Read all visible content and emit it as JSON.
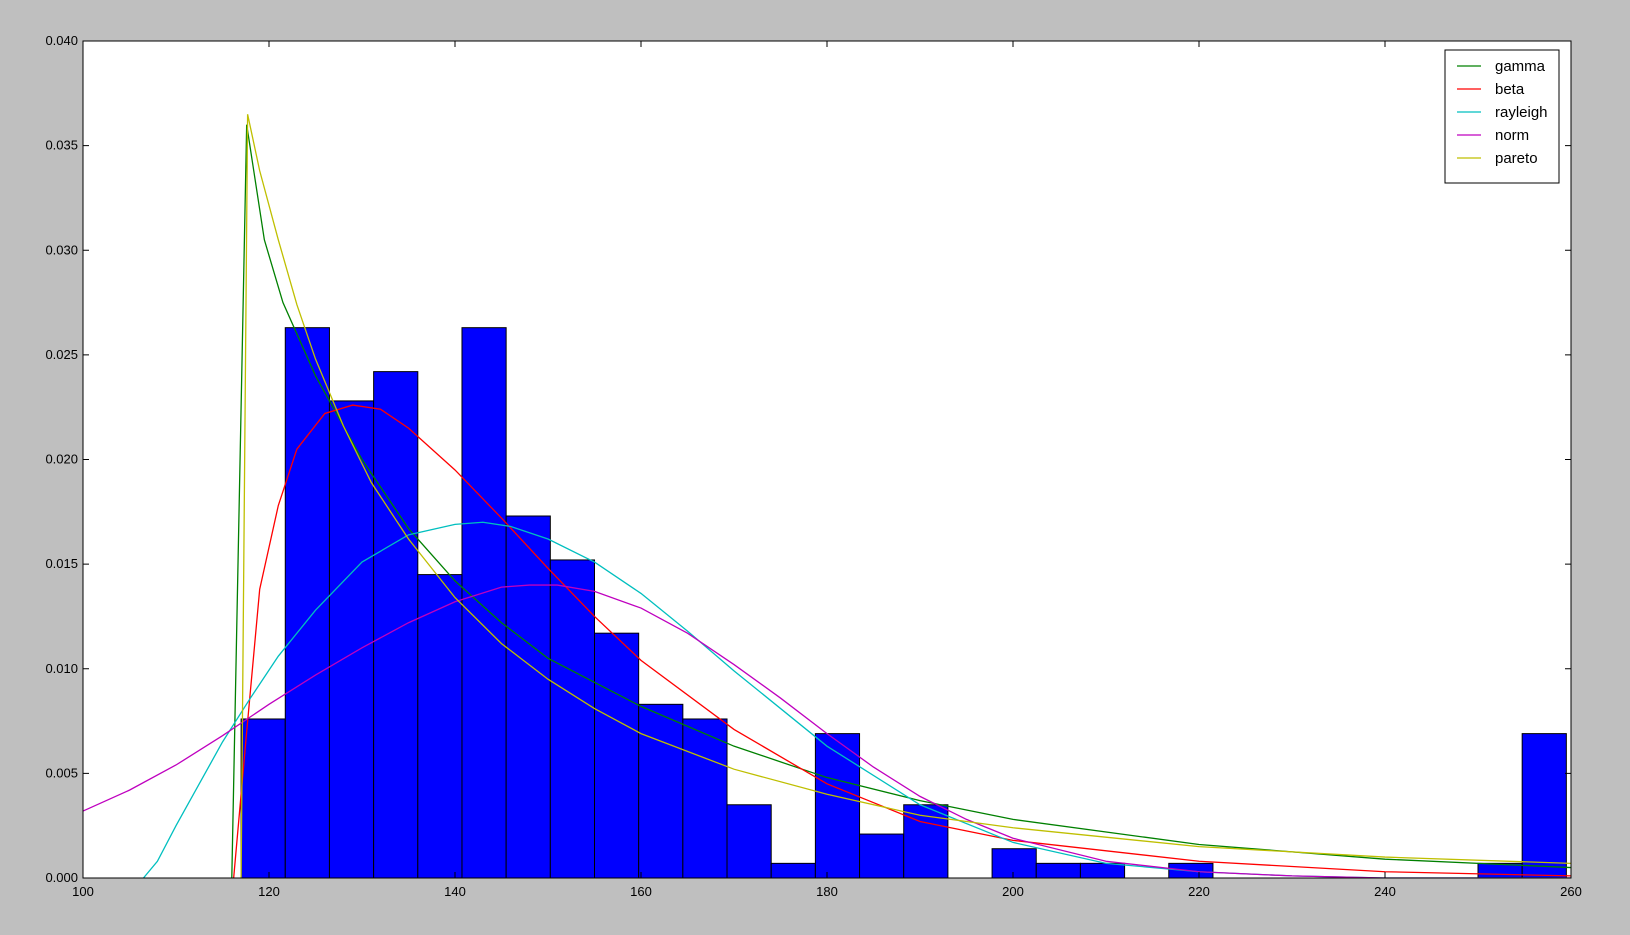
{
  "chart_data": {
    "type": "bar",
    "title": "",
    "xlabel": "",
    "ylabel": "",
    "xlim": [
      100,
      260
    ],
    "ylim": [
      0,
      0.04
    ],
    "x_ticks": [
      100,
      120,
      140,
      160,
      180,
      200,
      220,
      240,
      260
    ],
    "y_ticks": [
      0.0,
      0.005,
      0.01,
      0.015,
      0.02,
      0.025,
      0.03,
      0.035,
      0.04
    ],
    "x_tick_labels": [
      "100",
      "120",
      "140",
      "160",
      "180",
      "200",
      "220",
      "240",
      "260"
    ],
    "y_tick_labels": [
      "0.000",
      "0.005",
      "0.010",
      "0.015",
      "0.020",
      "0.025",
      "0.030",
      "0.035",
      "0.040"
    ],
    "grid": false,
    "legend_position": "top-right",
    "histogram": {
      "color": "#0000ff",
      "bin_edges": [
        117.0,
        121.75,
        126.5,
        131.25,
        136.0,
        140.75,
        145.5,
        150.25,
        155.0,
        159.75,
        164.5,
        169.25,
        174.0,
        178.75,
        183.5,
        188.25,
        193.0,
        197.75,
        202.5,
        207.25,
        212.0,
        216.75,
        221.5,
        226.25,
        231.0,
        235.75,
        240.5,
        245.25,
        250.0,
        254.75,
        259.5
      ],
      "density": [
        0.0076,
        0.0263,
        0.0228,
        0.0242,
        0.0145,
        0.0263,
        0.0173,
        0.0152,
        0.0117,
        0.0083,
        0.0076,
        0.0035,
        0.0007,
        0.0069,
        0.0021,
        0.0035,
        0.0,
        0.0014,
        0.0007,
        0.0007,
        0.0,
        0.0007,
        0.0,
        0.0,
        0.0,
        0.0,
        0.0,
        0.0,
        0.0007,
        0.0069
      ]
    },
    "series": [
      {
        "name": "gamma",
        "color": "#008000",
        "x": [
          116.0,
          117.6,
          119.5,
          121.5,
          125,
          130,
          135,
          140,
          145,
          150,
          160,
          170,
          180,
          190,
          200,
          220,
          240,
          260
        ],
        "values": [
          0.0,
          0.036,
          0.0305,
          0.0275,
          0.024,
          0.02,
          0.0167,
          0.0142,
          0.0122,
          0.0105,
          0.0082,
          0.0063,
          0.0048,
          0.0037,
          0.0028,
          0.0016,
          0.0009,
          0.0005
        ]
      },
      {
        "name": "beta",
        "color": "#ff0000",
        "x": [
          116.2,
          117.5,
          119,
          121,
          123,
          126,
          129,
          132,
          135,
          140,
          145,
          150,
          155,
          160,
          170,
          180,
          190,
          200,
          220,
          240,
          260
        ],
        "values": [
          0.0,
          0.0065,
          0.0138,
          0.0178,
          0.0205,
          0.0222,
          0.0226,
          0.0224,
          0.0215,
          0.0195,
          0.0172,
          0.0148,
          0.0125,
          0.0104,
          0.0071,
          0.0045,
          0.0027,
          0.0018,
          0.0008,
          0.0003,
          0.0001
        ]
      },
      {
        "name": "rayleigh",
        "color": "#00bfbf",
        "x": [
          106.5,
          108,
          110,
          112,
          115,
          118,
          121,
          125,
          130,
          135,
          140,
          143,
          146,
          150,
          155,
          160,
          165,
          170,
          180,
          190,
          200,
          210,
          220,
          230,
          240,
          250,
          260
        ],
        "values": [
          0.0,
          0.0008,
          0.0025,
          0.0041,
          0.0065,
          0.0086,
          0.0106,
          0.0128,
          0.0151,
          0.0164,
          0.0169,
          0.017,
          0.0168,
          0.0162,
          0.0151,
          0.0136,
          0.0118,
          0.0099,
          0.0063,
          0.0035,
          0.0017,
          0.0007,
          0.0003,
          0.0001,
          0.0,
          0.0,
          0.0
        ]
      },
      {
        "name": "norm",
        "color": "#bf00bf",
        "x": [
          100,
          105,
          110,
          115,
          120,
          125,
          130,
          135,
          140,
          145,
          148,
          151,
          155,
          160,
          165,
          170,
          175,
          180,
          185,
          190,
          195,
          200,
          210,
          220,
          230,
          240,
          250,
          260
        ],
        "values": [
          0.0032,
          0.0042,
          0.0054,
          0.0068,
          0.0083,
          0.0097,
          0.011,
          0.0122,
          0.0132,
          0.0139,
          0.014,
          0.014,
          0.0137,
          0.0129,
          0.0117,
          0.0102,
          0.0086,
          0.0069,
          0.0053,
          0.0039,
          0.0028,
          0.0019,
          0.0008,
          0.0003,
          0.0001,
          0.0,
          0.0,
          0.0
        ]
      },
      {
        "name": "pareto",
        "color": "#bfbf00",
        "x": [
          117.0,
          117.7,
          119,
          121,
          123,
          125,
          128,
          131,
          135,
          140,
          145,
          150,
          155,
          160,
          170,
          180,
          190,
          200,
          220,
          240,
          260
        ],
        "values": [
          0.0,
          0.0365,
          0.0338,
          0.0305,
          0.0274,
          0.0248,
          0.0216,
          0.0189,
          0.0162,
          0.0134,
          0.0112,
          0.0095,
          0.0081,
          0.0069,
          0.0052,
          0.004,
          0.003,
          0.0024,
          0.0015,
          0.001,
          0.0007
        ]
      }
    ]
  }
}
